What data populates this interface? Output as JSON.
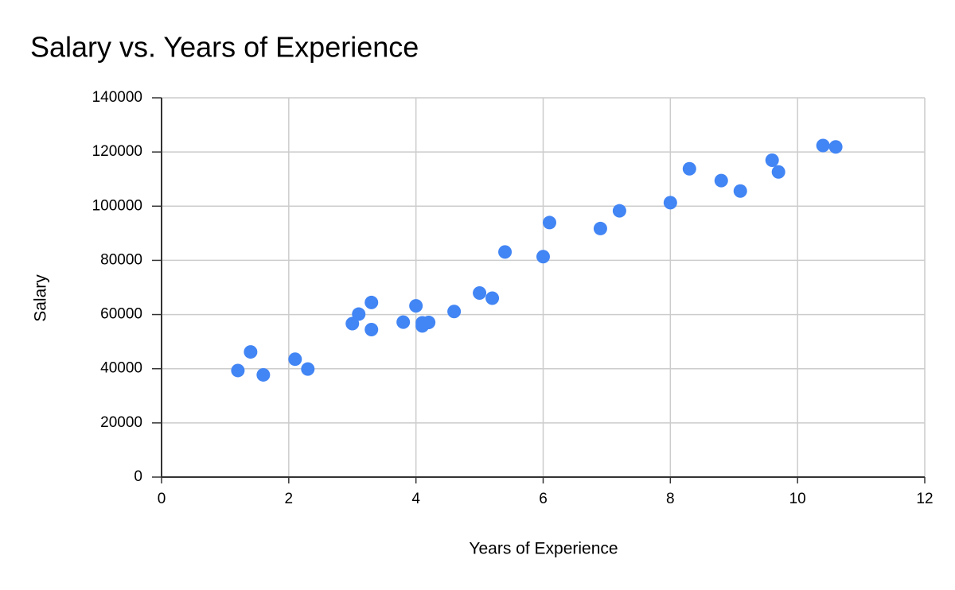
{
  "chart_data": {
    "type": "scatter",
    "title": "Salary vs. Years of Experience",
    "x_label": "Years of Experience",
    "y_label": "Salary",
    "xlim": [
      0,
      12
    ],
    "ylim": [
      0,
      140000
    ],
    "xticks": [
      0,
      2,
      4,
      6,
      8,
      10,
      12
    ],
    "yticks": [
      0,
      20000,
      40000,
      60000,
      80000,
      100000,
      120000,
      140000
    ],
    "grid": true,
    "series": [
      {
        "name": "Salary",
        "color": "#4285f4",
        "x": [
          1.2,
          1.4,
          1.6,
          2.1,
          2.3,
          3.0,
          3.1,
          3.3,
          3.3,
          3.8,
          4.0,
          4.1,
          4.1,
          4.2,
          4.6,
          5.0,
          5.2,
          5.4,
          6.0,
          6.1,
          6.9,
          7.2,
          8.0,
          8.3,
          8.8,
          9.1,
          9.6,
          9.7,
          10.4,
          10.6
        ],
        "values": [
          39343,
          46205,
          37731,
          43525,
          39891,
          56642,
          60150,
          54445,
          64445,
          57189,
          63218,
          55794,
          56957,
          57081,
          61111,
          67938,
          66029,
          83088,
          81363,
          93940,
          91738,
          98273,
          101302,
          113812,
          109431,
          105582,
          116969,
          112635,
          122391,
          121872
        ]
      }
    ]
  }
}
